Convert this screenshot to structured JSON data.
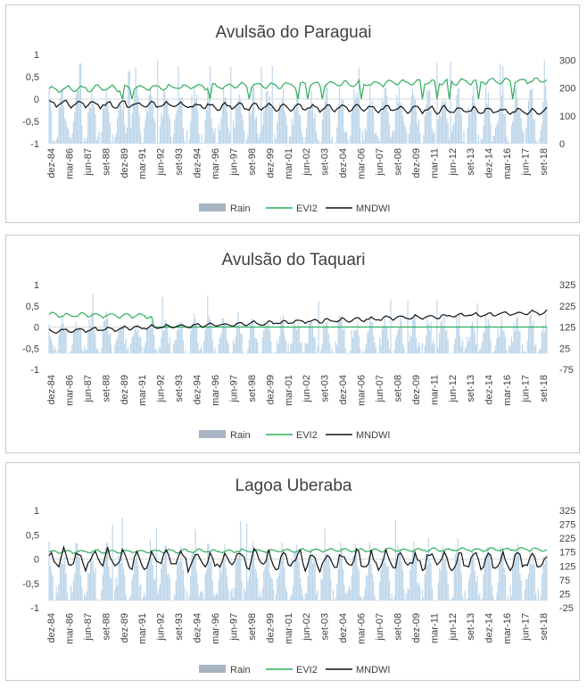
{
  "colors": {
    "rain": "#bcd5ea",
    "rain_legend": "#a7b4c2",
    "evi2": "#2fae5c",
    "mndwi": "#111111",
    "axis": "#d9d9d9"
  },
  "x_ticks": [
    "dez-84",
    "mar-86",
    "jun-87",
    "set-88",
    "dez-89",
    "mar-91",
    "jun-92",
    "set-93",
    "dez-94",
    "mar-96",
    "jun-97",
    "set-98",
    "dez-99",
    "mar-01",
    "jun-02",
    "set-03",
    "dez-04",
    "mar-06",
    "jun-07",
    "set-08",
    "dez-09",
    "mar-11",
    "jun-12",
    "set-13",
    "dez-14",
    "mar-16",
    "jun-17",
    "set-18"
  ],
  "legend": {
    "rain": "Rain",
    "evi2": "EVI2",
    "mndwi": "MNDWI"
  },
  "chart_data": [
    {
      "type": "line",
      "title": "Avulsão do Paraguai",
      "x_range": [
        "dez-84",
        "dez-18"
      ],
      "y_left": {
        "ticks": [
          "1",
          "0,5",
          "0",
          "-0,5",
          "-1"
        ],
        "range": [
          -1,
          1
        ]
      },
      "y_right": {
        "ticks": [
          "300",
          "200",
          "100",
          "0"
        ],
        "range": [
          0,
          320
        ]
      },
      "series": [
        {
          "name": "Rain",
          "axis": "right",
          "kind": "bar",
          "mean": 90,
          "peak": 300,
          "seasonal_amplitude": 85
        },
        {
          "name": "EVI2",
          "axis": "left",
          "kind": "line",
          "start": 0.22,
          "end": 0.42,
          "noise": 0.06,
          "dropouts_to_zero": true
        },
        {
          "name": "MNDWI",
          "axis": "left",
          "kind": "line",
          "start": -0.1,
          "end": -0.28,
          "noise": 0.08
        }
      ]
    },
    {
      "type": "line",
      "title": "Avulsão do Taquari",
      "x_range": [
        "dez-84",
        "dez-18"
      ],
      "y_left": {
        "ticks": [
          "1",
          "0,5",
          "0",
          "-0,5",
          "-1"
        ],
        "range": [
          -1,
          1
        ]
      },
      "y_right": {
        "ticks": [
          "325",
          "225",
          "125",
          "25",
          "-75"
        ],
        "range": [
          -75,
          325
        ]
      },
      "series": [
        {
          "name": "Rain",
          "axis": "right",
          "kind": "bar",
          "mean": 75,
          "peak": 280,
          "seasonal_amplitude": 80
        },
        {
          "name": "EVI2",
          "axis": "left",
          "kind": "line",
          "start": 0.28,
          "end": 0.22,
          "noise": 0.05,
          "ends_at": "jun-92",
          "then_constant": 0
        },
        {
          "name": "MNDWI",
          "axis": "left",
          "kind": "line",
          "start": -0.1,
          "end": 0.35,
          "noise": 0.05
        }
      ]
    },
    {
      "type": "line",
      "title": "Lagoa Uberaba",
      "x_range": [
        "dez-84",
        "dez-18"
      ],
      "y_left": {
        "ticks": [
          "1",
          "0,5",
          "0",
          "-0,5",
          "-1"
        ],
        "range": [
          -1,
          1
        ]
      },
      "y_right": {
        "ticks": [
          "325",
          "275",
          "225",
          "175",
          "125",
          "75",
          "25",
          "-25"
        ],
        "range": [
          -25,
          325
        ]
      },
      "series": [
        {
          "name": "Rain",
          "axis": "right",
          "kind": "bar",
          "mean": 90,
          "peak": 300,
          "seasonal_amplitude": 90
        },
        {
          "name": "EVI2",
          "axis": "left",
          "kind": "line",
          "start": 0.15,
          "end": 0.2,
          "noise": 0.03
        },
        {
          "name": "MNDWI",
          "axis": "left",
          "kind": "line",
          "start": 0.0,
          "end": -0.05,
          "noise": 0.2
        }
      ]
    }
  ]
}
